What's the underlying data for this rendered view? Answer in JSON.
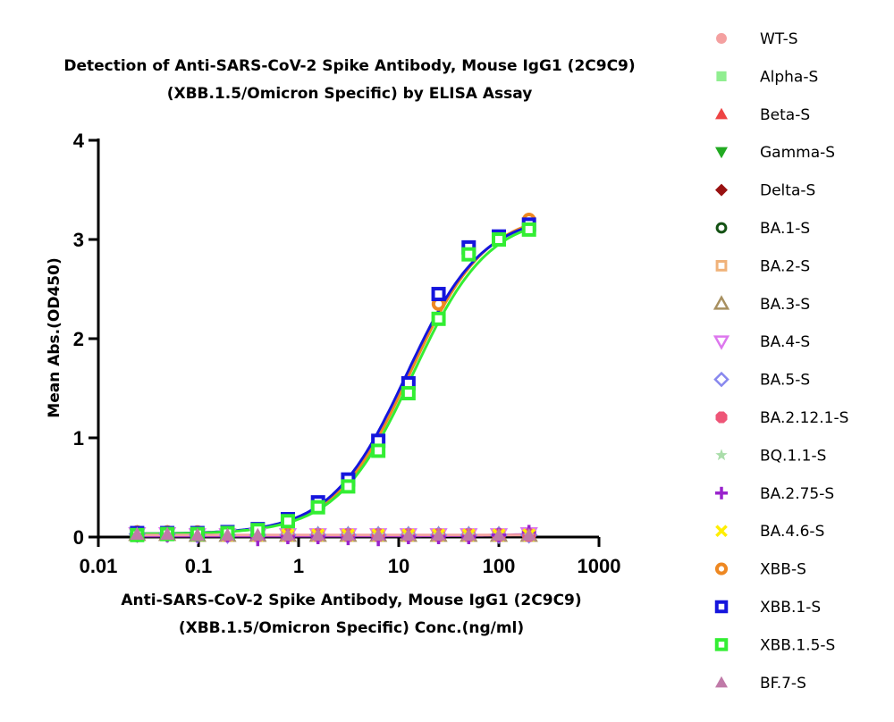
{
  "chart_data": {
    "type": "scatter",
    "title": [
      "Detection of  Anti-SARS-CoV-2 Spike Antibody, Mouse IgG1 (2C9C9)",
      "(XBB.1.5/Omicron Specific) by ELISA Assay"
    ],
    "xlabel": [
      "Anti-SARS-CoV-2 Spike Antibody, Mouse IgG1 (2C9C9)",
      "(XBB.1.5/Omicron Specific) Conc.(ng/ml)"
    ],
    "ylabel": "Mean Abs.(OD450)",
    "x_scale": "log",
    "xlim": [
      0.01,
      1000
    ],
    "ylim": [
      0,
      4
    ],
    "x_ticks": [
      0.01,
      0.1,
      1,
      10,
      100,
      1000
    ],
    "x_tick_labels": [
      "0.01",
      "0.1",
      "1",
      "10",
      "100",
      "1000"
    ],
    "y_ticks": [
      0,
      1,
      2,
      3,
      4
    ],
    "y_tick_labels": [
      "0",
      "1",
      "2",
      "3",
      "4"
    ],
    "grid": false,
    "legend_position": "right",
    "x": [
      0.0244,
      0.0488,
      0.0977,
      0.195,
      0.391,
      0.781,
      1.5625,
      3.125,
      6.25,
      12.5,
      25,
      50,
      100,
      200
    ],
    "series": [
      {
        "name": "WT-S",
        "color": "#f4a0a0",
        "marker": "circle",
        "values": [
          0.05,
          0.04,
          0.04,
          0.03,
          0.03,
          0.03,
          0.03,
          0.02,
          0.02,
          0.02,
          0.02,
          0.02,
          0.03,
          0.03
        ]
      },
      {
        "name": "Alpha-S",
        "color": "#90ee90",
        "marker": "square",
        "values": [
          0.04,
          0.03,
          0.03,
          0.03,
          0.02,
          0.02,
          0.02,
          0.02,
          0.02,
          0.02,
          0.02,
          0.02,
          0.02,
          0.03
        ]
      },
      {
        "name": "Beta-S",
        "color": "#ee4444",
        "marker": "triangle-up",
        "values": [
          0.04,
          0.03,
          0.03,
          0.03,
          0.02,
          0.02,
          0.02,
          0.02,
          0.02,
          0.02,
          0.02,
          0.02,
          0.02,
          0.03
        ]
      },
      {
        "name": "Gamma-S",
        "color": "#22aa22",
        "marker": "triangle-down",
        "values": [
          0.03,
          0.03,
          0.03,
          0.02,
          0.02,
          0.02,
          0.02,
          0.02,
          0.02,
          0.02,
          0.02,
          0.02,
          0.02,
          0.03
        ]
      },
      {
        "name": "Delta-S",
        "color": "#991111",
        "marker": "diamond",
        "values": [
          0.03,
          0.03,
          0.02,
          0.02,
          0.02,
          0.02,
          0.02,
          0.02,
          0.02,
          0.02,
          0.02,
          0.02,
          0.02,
          0.02
        ]
      },
      {
        "name": "BA.1-S",
        "color": "#145214",
        "marker": "open-circle",
        "values": [
          0.04,
          0.03,
          0.03,
          0.02,
          0.02,
          0.02,
          0.02,
          0.02,
          0.02,
          0.02,
          0.02,
          0.02,
          0.02,
          0.03
        ]
      },
      {
        "name": "BA.2-S",
        "color": "#f0b27a",
        "marker": "open-square",
        "values": [
          0.04,
          0.03,
          0.03,
          0.02,
          0.02,
          0.02,
          0.02,
          0.02,
          0.02,
          0.02,
          0.02,
          0.02,
          0.02,
          0.03
        ]
      },
      {
        "name": "BA.3-S",
        "color": "#a89060",
        "marker": "open-triangle-up",
        "values": [
          0.03,
          0.03,
          0.02,
          0.02,
          0.02,
          0.02,
          0.02,
          0.02,
          0.02,
          0.02,
          0.02,
          0.02,
          0.02,
          0.02
        ]
      },
      {
        "name": "BA.4-S",
        "color": "#dd77ee",
        "marker": "open-triangle-down",
        "values": [
          0.03,
          0.03,
          0.02,
          0.02,
          0.02,
          0.02,
          0.02,
          0.02,
          0.02,
          0.02,
          0.02,
          0.02,
          0.02,
          0.03
        ]
      },
      {
        "name": "BA.5-S",
        "color": "#8888ee",
        "marker": "open-diamond",
        "values": [
          0.03,
          0.03,
          0.02,
          0.02,
          0.02,
          0.02,
          0.02,
          0.02,
          0.02,
          0.02,
          0.02,
          0.02,
          0.02,
          0.02
        ]
      },
      {
        "name": "BA.2.12.1-S",
        "color": "#ee5577",
        "marker": "octagon",
        "values": [
          0.03,
          0.03,
          0.02,
          0.02,
          0.02,
          0.02,
          0.02,
          0.02,
          0.02,
          0.02,
          0.02,
          0.02,
          0.02,
          0.02
        ]
      },
      {
        "name": "BQ.1.1-S",
        "color": "#aaddaa",
        "marker": "star",
        "values": [
          0.03,
          0.03,
          0.02,
          0.02,
          0.02,
          0.02,
          0.02,
          0.02,
          0.02,
          0.02,
          0.02,
          0.02,
          0.02,
          0.02
        ]
      },
      {
        "name": "BA.2.75-S",
        "color": "#9922cc",
        "marker": "plus",
        "values": [
          0.02,
          0.02,
          0.02,
          0.02,
          -0.02,
          0.0,
          0.0,
          -0.01,
          -0.02,
          0.0,
          0.0,
          0.0,
          0.02,
          0.05
        ]
      },
      {
        "name": "BA.4.6-S",
        "color": "#ffee00",
        "marker": "cross",
        "values": [
          0.03,
          0.03,
          0.02,
          0.02,
          0.02,
          0.02,
          0.02,
          0.02,
          0.02,
          0.02,
          0.02,
          0.02,
          0.02,
          0.02
        ]
      },
      {
        "name": "XBB-S",
        "color": "#ee8822",
        "marker": "open-circle-thick",
        "values": [
          0.05,
          0.05,
          0.05,
          0.05,
          0.07,
          0.15,
          0.3,
          0.52,
          0.92,
          1.5,
          2.35,
          2.88,
          3.02,
          3.2
        ]
      },
      {
        "name": "XBB.1-S",
        "color": "#1515dd",
        "marker": "open-square-thick",
        "values": [
          0.04,
          0.04,
          0.04,
          0.05,
          0.08,
          0.18,
          0.35,
          0.58,
          0.97,
          1.55,
          2.45,
          2.92,
          3.03,
          3.15
        ]
      },
      {
        "name": "XBB.1.5-S",
        "color": "#33ee33",
        "marker": "open-square-thick",
        "values": [
          0.02,
          0.03,
          0.03,
          0.04,
          0.07,
          0.16,
          0.3,
          0.51,
          0.87,
          1.45,
          2.2,
          2.85,
          3.0,
          3.1
        ]
      },
      {
        "name": "BF.7-S",
        "color": "#c07aa8",
        "marker": "triangle-up",
        "values": [
          0.03,
          0.03,
          0.02,
          0.02,
          0.02,
          0.02,
          0.02,
          0.02,
          0.02,
          0.02,
          0.02,
          0.02,
          0.02,
          0.02
        ]
      }
    ],
    "fit_curves": [
      {
        "name": "XBB-S",
        "color": "#ee8822",
        "bottom": 0.03,
        "top": 3.28,
        "ec50": 13.0,
        "hill": 1.15
      },
      {
        "name": "XBB.1-S",
        "color": "#1515dd",
        "bottom": 0.03,
        "top": 3.25,
        "ec50": 12.0,
        "hill": 1.15
      },
      {
        "name": "XBB.1.5-S",
        "color": "#33ee33",
        "bottom": 0.03,
        "top": 3.25,
        "ec50": 13.8,
        "hill": 1.15
      },
      {
        "name": "BA.2.75-S",
        "color": "#9922cc",
        "bottom": 0.01,
        "top": 0.05,
        "ec50": 300,
        "hill": 1.0
      },
      {
        "name": "WT-S",
        "color": "#f4a0a0",
        "bottom": 0.02,
        "top": 0.02,
        "ec50": 10,
        "hill": 1.0
      }
    ]
  }
}
